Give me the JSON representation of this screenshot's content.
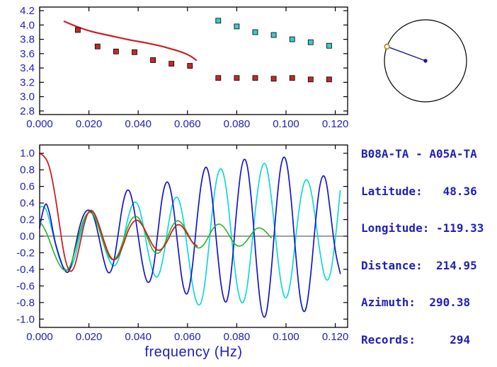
{
  "colors": {
    "text": "#2020bb",
    "frame": "#000000",
    "wave_blue": "#1515cc",
    "wave_cyan": "#10d8d8",
    "wave_green": "#28b428",
    "wave_red": "#cc2020",
    "red_marker": "#c62828",
    "cyan_marker": "#3cc8c8",
    "azimuth_line": "#1a1a8c",
    "azimuth_marker": "#b8860b"
  },
  "chart_data": [
    {
      "name": "group-velocity-dispersion",
      "type": "line",
      "title": "",
      "xlabel": "",
      "ylabel": "",
      "xlim": [
        0,
        0.125
      ],
      "ylim": [
        2.75,
        4.25
      ],
      "grid": false,
      "legend": "none",
      "xticks": [
        0,
        0.02,
        0.04,
        0.06,
        0.08,
        0.1,
        0.12
      ],
      "xtick_labels": [
        "0.000",
        "0.020",
        "0.040",
        "0.060",
        "0.080",
        "0.100",
        "0.120"
      ],
      "yticks": [
        2.8,
        3.0,
        3.2,
        3.4,
        3.6,
        3.8,
        4.0,
        4.2
      ],
      "ytick_labels": [
        "2.8",
        "3.0",
        "3.2",
        "3.4",
        "3.6",
        "3.8",
        "4.0",
        "4.2"
      ],
      "series": [
        {
          "name": "reference-dispersion-curve",
          "kind": "line",
          "color": "#cc2020",
          "width": 2.2,
          "smooth": true,
          "x": [
            0.01,
            0.014,
            0.018,
            0.022,
            0.026,
            0.03,
            0.034,
            0.038,
            0.042,
            0.046,
            0.05,
            0.054,
            0.057,
            0.06,
            0.062,
            0.0635
          ],
          "y": [
            4.05,
            3.99,
            3.94,
            3.9,
            3.87,
            3.84,
            3.81,
            3.78,
            3.76,
            3.73,
            3.7,
            3.66,
            3.63,
            3.59,
            3.55,
            3.51
          ]
        },
        {
          "name": "red-square-measurements",
          "kind": "scatter",
          "marker": "square",
          "marker_size": 7,
          "color": "#c62828",
          "x": [
            0.0155,
            0.0235,
            0.031,
            0.0385,
            0.046,
            0.0535,
            0.061,
            0.0725,
            0.08,
            0.0875,
            0.095,
            0.1025,
            0.11,
            0.1175
          ],
          "y": [
            3.93,
            3.7,
            3.63,
            3.62,
            3.51,
            3.46,
            3.43,
            3.26,
            3.26,
            3.26,
            3.25,
            3.26,
            3.24,
            3.24
          ]
        },
        {
          "name": "cyan-square-measurements",
          "kind": "scatter",
          "marker": "square",
          "marker_size": 7,
          "color": "#3cc8c8",
          "x": [
            0.0725,
            0.08,
            0.0875,
            0.095,
            0.1025,
            0.11,
            0.1175
          ],
          "y": [
            4.06,
            3.98,
            3.9,
            3.86,
            3.8,
            3.76,
            3.71
          ]
        }
      ]
    },
    {
      "name": "cross-correlation-waveforms",
      "type": "line",
      "title": "",
      "xlabel": "frequency (Hz)",
      "ylabel": "",
      "xlim": [
        0,
        0.125
      ],
      "ylim": [
        -1.1,
        1.1
      ],
      "grid": false,
      "legend": "none",
      "zero_line": true,
      "xticks": [
        0,
        0.02,
        0.04,
        0.06,
        0.08,
        0.1,
        0.12
      ],
      "xtick_labels": [
        "0.000",
        "0.020",
        "0.040",
        "0.060",
        "0.080",
        "0.100",
        "0.120"
      ],
      "yticks": [
        -1.0,
        -0.8,
        -0.6,
        -0.4,
        -0.2,
        0.0,
        0.2,
        0.4,
        0.6,
        0.8,
        1.0
      ],
      "ytick_labels": [
        "-1.0",
        "-0.8",
        "-0.6",
        "-0.4",
        "-0.2",
        "0.0",
        "0.2",
        "0.4",
        "0.6",
        "0.8",
        "1.0"
      ],
      "series": [
        {
          "name": "cyan-waveform",
          "kind": "line",
          "color": "#10d8d8",
          "width": 1.7,
          "smooth": true,
          "x_start": 0,
          "x_step": 0.002,
          "y": [
            0.35,
            0.38,
            0.2,
            -0.05,
            -0.28,
            -0.4,
            -0.42,
            -0.3,
            -0.05,
            0.2,
            0.3,
            0.28,
            0.12,
            -0.1,
            -0.28,
            -0.38,
            -0.3,
            -0.05,
            0.25,
            0.42,
            0.4,
            0.15,
            -0.2,
            -0.45,
            -0.52,
            -0.3,
            0.1,
            0.42,
            0.5,
            0.28,
            -0.15,
            -0.6,
            -0.85,
            -0.8,
            -0.35,
            0.3,
            0.75,
            0.85,
            0.55,
            -0.05,
            -0.6,
            -0.85,
            -0.7,
            -0.15,
            0.45,
            0.85,
            0.9,
            0.5,
            -0.1,
            -0.6,
            -0.8,
            -0.55,
            0.0,
            0.5,
            0.72,
            0.6,
            0.2,
            -0.25,
            -0.55,
            -0.5,
            -0.05,
            0.55
          ]
        },
        {
          "name": "blue-waveform",
          "kind": "line",
          "color": "#1515cc",
          "width": 1.7,
          "smooth": true,
          "x_start": 0,
          "x_step": 0.002,
          "y": [
            0.1,
            0.45,
            0.3,
            -0.05,
            -0.25,
            -0.42,
            -0.45,
            -0.2,
            0.1,
            0.28,
            0.33,
            0.25,
            0.0,
            -0.3,
            -0.48,
            -0.35,
            0.05,
            0.45,
            0.6,
            0.4,
            0.0,
            -0.4,
            -0.6,
            -0.45,
            0.05,
            0.55,
            0.7,
            0.45,
            -0.1,
            -0.6,
            -0.75,
            -0.4,
            0.25,
            0.75,
            0.88,
            0.5,
            -0.15,
            -0.7,
            -0.85,
            -0.4,
            0.35,
            0.9,
            0.95,
            0.45,
            -0.35,
            -0.95,
            -1.0,
            -0.45,
            0.35,
            0.92,
            0.98,
            0.5,
            -0.25,
            -0.85,
            -0.95,
            -0.5,
            0.2,
            0.7,
            0.75,
            0.3,
            -0.2,
            -0.45
          ]
        },
        {
          "name": "green-waveform",
          "kind": "line",
          "color": "#28b428",
          "width": 1.6,
          "smooth": true,
          "x_start": 0,
          "x_step": 0.002,
          "y": [
            0.18,
            0.1,
            -0.05,
            -0.22,
            -0.35,
            -0.42,
            -0.4,
            -0.22,
            0.02,
            0.22,
            0.3,
            0.26,
            0.1,
            -0.1,
            -0.25,
            -0.3,
            -0.22,
            -0.05,
            0.14,
            0.24,
            0.24,
            0.12,
            -0.04,
            -0.18,
            -0.22,
            -0.15,
            0.0,
            0.14,
            0.2,
            0.15,
            0.04,
            -0.08,
            -0.15,
            -0.13,
            -0.04,
            0.08,
            0.15,
            0.14,
            0.06,
            -0.05,
            -0.12,
            -0.12,
            -0.06,
            0.03,
            0.1,
            0.1,
            0.05,
            -0.02
          ]
        },
        {
          "name": "red-waveform",
          "kind": "line",
          "color": "#cc2020",
          "width": 1.8,
          "smooth": true,
          "x_start": 0,
          "x_step": 0.002,
          "y": [
            1.0,
            0.97,
            0.85,
            0.55,
            0.15,
            -0.25,
            -0.44,
            -0.4,
            -0.15,
            0.15,
            0.32,
            0.3,
            0.15,
            -0.05,
            -0.22,
            -0.3,
            -0.25,
            -0.1,
            0.08,
            0.18,
            0.2,
            0.12,
            0.0,
            -0.12,
            -0.18,
            -0.15,
            -0.05,
            0.08,
            0.15,
            0.12,
            0.02,
            -0.08,
            -0.12
          ]
        }
      ]
    }
  ],
  "azimuth_diagram": {
    "azimuth_deg": 290.38
  },
  "info_panel": {
    "title": "B08A-TA - A05A-TA",
    "lines": [
      "Latitude:   48.36",
      "Longitude: -119.33",
      "Distance:  214.95",
      "Azimuth:  290.38",
      "Records:     294"
    ]
  }
}
